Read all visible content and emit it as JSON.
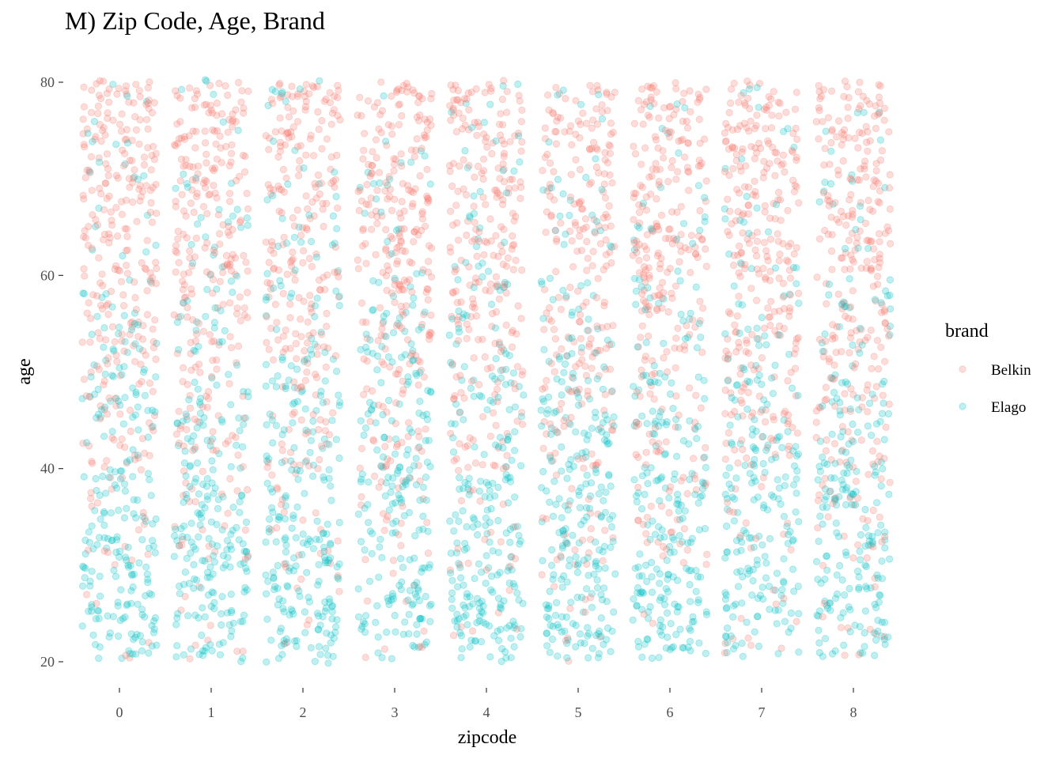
{
  "chart_data": {
    "type": "scatter",
    "title": "M) Zip Code, Age, Brand",
    "xlabel": "zipcode",
    "ylabel": "age",
    "x_categories": [
      "0",
      "1",
      "2",
      "3",
      "4",
      "5",
      "6",
      "7",
      "8"
    ],
    "y_ticks": [
      "20",
      "40",
      "60",
      "80"
    ],
    "ylim": [
      20,
      80
    ],
    "jitter": true,
    "grid": false,
    "legend": {
      "title": "brand",
      "position": "right",
      "entries": [
        "Belkin",
        "Elago"
      ]
    },
    "series": [
      {
        "name": "Belkin",
        "color": "#F8766D",
        "alpha": 0.25,
        "age_band_share": [
          0.1,
          0.25,
          0.45,
          0.65,
          0.82,
          0.9
        ]
      },
      {
        "name": "Elago",
        "color": "#00BFC4",
        "alpha": 0.25,
        "age_band_share": [
          0.9,
          0.75,
          0.55,
          0.35,
          0.18,
          0.1
        ]
      }
    ],
    "age_bands": [
      [
        20,
        30
      ],
      [
        30,
        40
      ],
      [
        40,
        50
      ],
      [
        50,
        60
      ],
      [
        60,
        70
      ],
      [
        70,
        80
      ]
    ]
  }
}
